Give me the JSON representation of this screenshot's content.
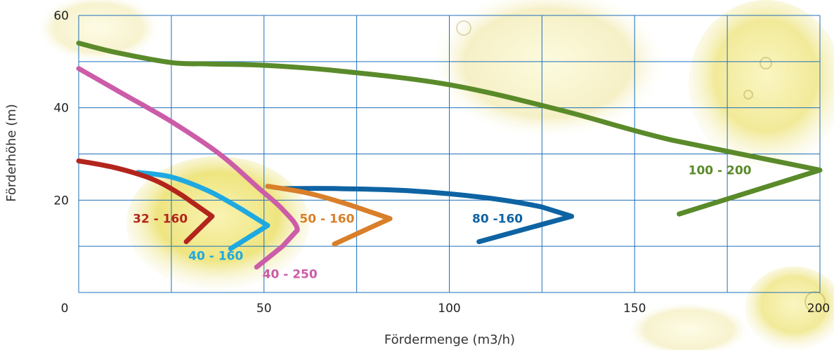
{
  "chart_data": {
    "type": "line",
    "title": "",
    "xlabel": "Fördermenge (m3/h)",
    "ylabel": "Förderhöhe (m)",
    "xlim": [
      0,
      200
    ],
    "ylim": [
      0,
      60
    ],
    "x_ticks": [
      0,
      50,
      100,
      150,
      200
    ],
    "y_ticks": [
      20,
      40,
      60
    ],
    "grid": true,
    "series": [
      {
        "name": "100 - 200",
        "color": "#5a8a2a",
        "points": [
          [
            0,
            54
          ],
          [
            10,
            52
          ],
          [
            25,
            49.8
          ],
          [
            35,
            49.5
          ],
          [
            50,
            49.2
          ],
          [
            70,
            48
          ],
          [
            100,
            45
          ],
          [
            130,
            39.5
          ],
          [
            160,
            33
          ],
          [
            200,
            26.5
          ],
          [
            162,
            17
          ]
        ]
      },
      {
        "name": "80 -160",
        "color": "#0e63a3",
        "points": [
          [
            55,
            22.5
          ],
          [
            70,
            22.5
          ],
          [
            90,
            22
          ],
          [
            110,
            20.5
          ],
          [
            125,
            18.5
          ],
          [
            133,
            16.5
          ],
          [
            108,
            11
          ]
        ]
      },
      {
        "name": "50 - 160",
        "color": "#d97f2a",
        "points": [
          [
            51,
            23
          ],
          [
            62,
            21.5
          ],
          [
            73,
            19
          ],
          [
            84,
            16
          ],
          [
            69,
            10.5
          ]
        ]
      },
      {
        "name": "40 - 250",
        "color": "#cc5ca8",
        "points": [
          [
            0,
            48.5
          ],
          [
            12,
            43
          ],
          [
            25,
            37
          ],
          [
            38,
            30
          ],
          [
            48,
            23
          ],
          [
            55,
            18
          ],
          [
            59,
            13.5
          ],
          [
            55,
            10
          ],
          [
            48,
            5.5
          ]
        ]
      },
      {
        "name": "40 - 160",
        "color": "#1fa9e1",
        "points": [
          [
            16,
            26
          ],
          [
            25,
            25
          ],
          [
            35,
            22
          ],
          [
            44,
            18
          ],
          [
            51,
            14.5
          ],
          [
            41,
            9.5
          ]
        ]
      },
      {
        "name": "32 - 160",
        "color": "#b3251c",
        "points": [
          [
            0,
            28.5
          ],
          [
            10,
            27
          ],
          [
            20,
            24.5
          ],
          [
            28,
            21
          ],
          [
            36,
            16.5
          ],
          [
            29,
            11
          ]
        ]
      }
    ],
    "series_labels": [
      {
        "series": "100 - 200",
        "x": 173,
        "y": 26.5
      },
      {
        "series": "80 -160",
        "x": 113,
        "y": 16
      },
      {
        "series": "50 - 160",
        "x": 67,
        "y": 16
      },
      {
        "series": "40 - 250",
        "x": 57,
        "y": 4
      },
      {
        "series": "40 - 160",
        "x": 37,
        "y": 8
      },
      {
        "series": "32 - 160",
        "x": 22,
        "y": 16
      }
    ]
  }
}
